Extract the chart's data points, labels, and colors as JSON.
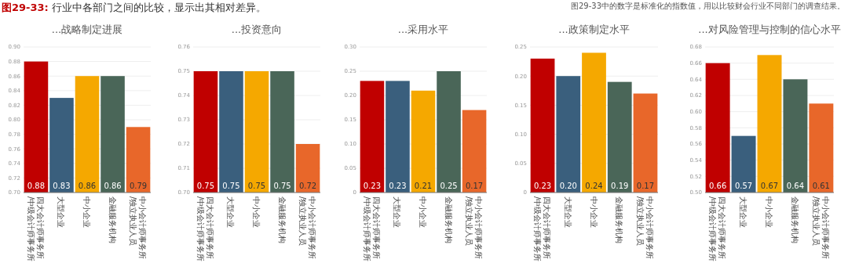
{
  "chart_data": [
    {
      "type": "bar",
      "title": "...战略制定进展",
      "annotations": [
        "图29-33:",
        "行业中各部门之间的比较，显示出其相对差异。",
        "图29-33中的数字是标准化的指数值，用以比较财会行业不同部门的调查结果。"
      ],
      "categories": [
        "四大会计师事务所/中级会计师事务所",
        "大型企业",
        "中小企业",
        "金融服务机构",
        "中小会计师事务所/独立执业人员"
      ],
      "values": [
        0.88,
        0.83,
        0.86,
        0.86,
        0.79
      ],
      "value_labels": [
        "0.88",
        "0.83",
        "0.86",
        "0.86",
        "0.79"
      ],
      "colors": [
        "#c00000",
        "#3a5f7d",
        "#f5a800",
        "#4a6658",
        "#e8672a"
      ],
      "ylim": [
        0.7,
        0.9
      ],
      "yticks": [
        {
          "value": 0.7,
          "label": "0.70"
        },
        0.72,
        0.74,
        0.76,
        0.78,
        {
          "value": 0.8,
          "label": "0.80"
        },
        0.82,
        0.84,
        0.86,
        0.88,
        {
          "value": 0.9,
          "label": "0.90"
        }
      ],
      "grid": "y"
    },
    {
      "type": "bar",
      "title": "...投资意向",
      "categories": [
        "四大会计师事务所/中级会计师事务所",
        "大型企业",
        "中小企业",
        "金融服务机构",
        "中小会计师事务所/独立执业人员"
      ],
      "values": [
        0.75,
        0.75,
        0.75,
        0.75,
        0.72
      ],
      "value_labels": [
        "0.75",
        "0.75",
        "0.75",
        "0.75",
        "0.72"
      ],
      "colors": [
        "#c00000",
        "#3a5f7d",
        "#f5a800",
        "#4a6658",
        "#e8672a"
      ],
      "ylim": [
        0.7,
        0.76
      ],
      "yticks": [
        {
          "value": 0.7,
          "label": "0.70"
        },
        0.71,
        0.72,
        0.73,
        0.74,
        0.75,
        0.76
      ],
      "grid": "y"
    },
    {
      "type": "bar",
      "title": "...采用水平",
      "categories": [
        "四大会计师事务所/中级会计师事务所",
        "大型企业",
        "中小企业",
        "金融服务机构",
        "中小会计师事务所/独立执业人员"
      ],
      "values": [
        0.23,
        0.23,
        0.21,
        0.25,
        0.17
      ],
      "value_labels": [
        "0.23",
        "0.23",
        "0.21",
        "0.25",
        "0.17"
      ],
      "colors": [
        "#c00000",
        "#3a5f7d",
        "#f5a800",
        "#4a6658",
        "#e8672a"
      ],
      "ylim": [
        0,
        0.3
      ],
      "yticks": [
        0,
        0.05,
        {
          "value": 0.1,
          "label": "0.10"
        },
        0.15,
        {
          "value": 0.2,
          "label": "0.20"
        },
        0.25,
        {
          "value": 0.3,
          "label": "0.30"
        }
      ],
      "grid": "y"
    },
    {
      "type": "bar",
      "title": "...政策制定水平",
      "categories": [
        "四大会计师事务所/中级会计师事务所",
        "大型企业",
        "中小企业",
        "金融服务机构",
        "中小会计师事务所/独立执业人员"
      ],
      "values": [
        0.23,
        0.2,
        0.24,
        0.19,
        0.17
      ],
      "value_labels": [
        "0.23",
        "0.20",
        "0.24",
        "0.19",
        "0.17"
      ],
      "colors": [
        "#c00000",
        "#3a5f7d",
        "#f5a800",
        "#4a6658",
        "#e8672a"
      ],
      "ylim": [
        0,
        0.25
      ],
      "yticks": [
        0,
        0.05,
        {
          "value": 0.1,
          "label": "0.10"
        },
        0.15,
        {
          "value": 0.2,
          "label": "0.20"
        },
        0.25
      ],
      "grid": "y"
    },
    {
      "type": "bar",
      "title": "...对风险管理与控制的信心水平",
      "categories": [
        "四大会计师事务所/中级会计师事务所",
        "大型企业",
        "中小企业",
        "金融服务机构",
        "中小会计师事务所/独立执业人员"
      ],
      "values": [
        0.66,
        0.57,
        0.67,
        0.64,
        0.61
      ],
      "value_labels": [
        "0.66",
        "0.57",
        "0.67",
        "0.64",
        "0.61"
      ],
      "colors": [
        "#c00000",
        "#3a5f7d",
        "#f5a800",
        "#4a6658",
        "#e8672a"
      ],
      "ylim": [
        0.5,
        0.68
      ],
      "yticks": [
        {
          "value": 0.5,
          "label": "0.50"
        },
        0.52,
        0.54,
        0.56,
        0.58,
        {
          "value": 0.6,
          "label": "0.60"
        },
        0.62,
        0.64,
        0.66,
        0.68
      ],
      "grid": "y"
    }
  ]
}
